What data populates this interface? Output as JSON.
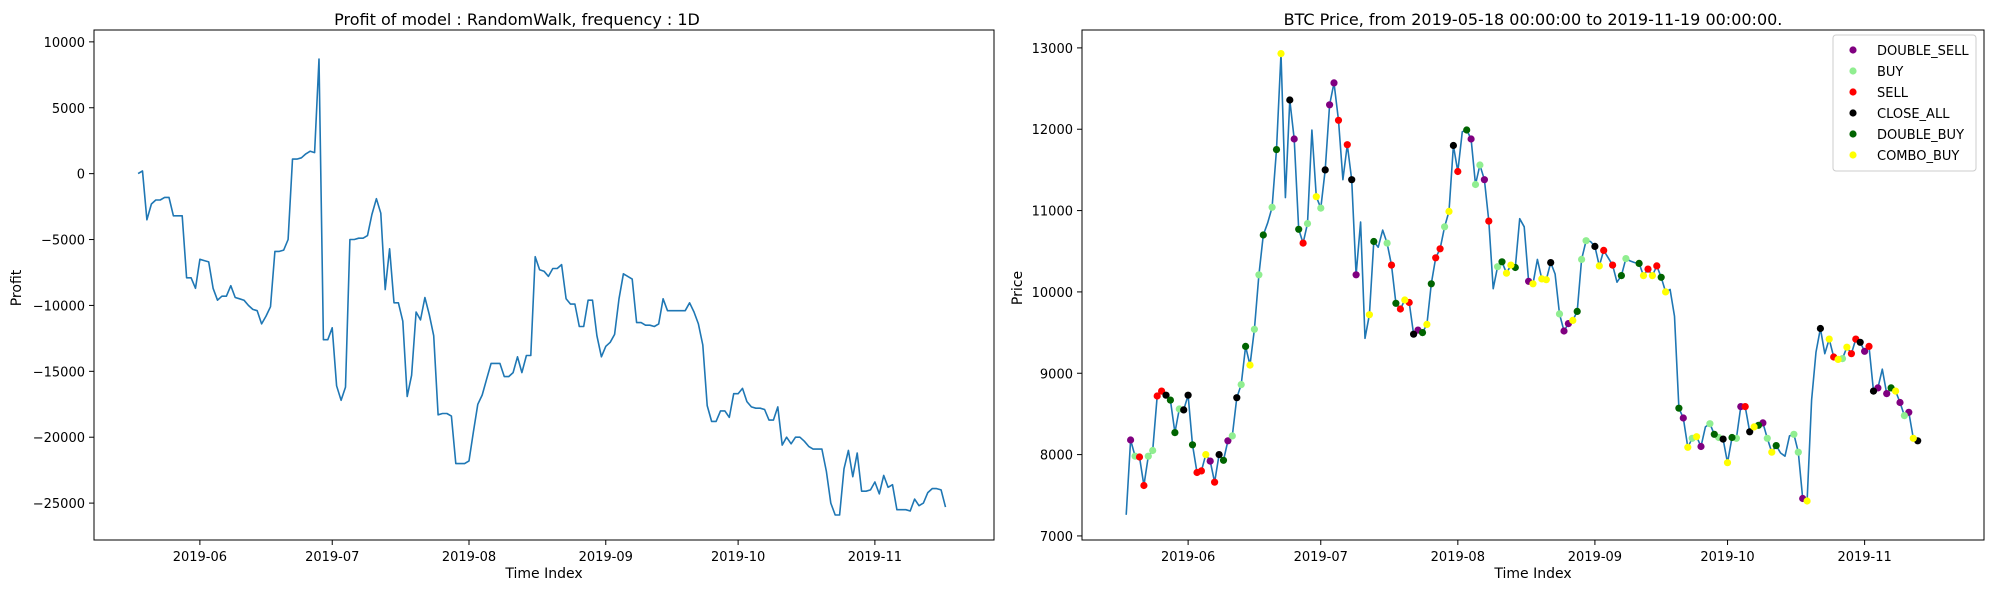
{
  "chart_data": [
    {
      "type": "line",
      "title": "Profit of model : RandomWalk, frequency : 1D",
      "xlabel": "Time Index",
      "ylabel": "Profit",
      "x_start": "2019-05-18",
      "x_ticks": [
        "2019-06",
        "2019-07",
        "2019-08",
        "2019-09",
        "2019-10",
        "2019-11"
      ],
      "x_tick_dates": [
        "2019-06-01",
        "2019-07-01",
        "2019-08-01",
        "2019-09-01",
        "2019-10-01",
        "2019-11-01"
      ],
      "xlim": [
        "2019-05-08",
        "2019-11-28"
      ],
      "y_ticks": [
        10000,
        5000,
        0,
        -5000,
        -10000,
        -15000,
        -20000,
        -25000
      ],
      "ylim": [
        -27800,
        10900
      ],
      "grid": false,
      "color": "#1f77b4",
      "series": [
        {
          "values": [
            0,
            200,
            -3500,
            -2300,
            -2000,
            -2000,
            -1800,
            -1800,
            -3200,
            -3200,
            -3200,
            -7900,
            -7900,
            -8700,
            -6500,
            -6600,
            -6700,
            -8700,
            -9600,
            -9300,
            -9300,
            -8500,
            -9400,
            -9500,
            -9600,
            -10000,
            -10300,
            -10400,
            -11400,
            -10800,
            -10100,
            -5900,
            -5900,
            -5800,
            -5000,
            1100,
            1100,
            1200,
            1500,
            1700,
            1600,
            8700,
            -12600,
            -12600,
            -11700,
            -16100,
            -17200,
            -16200,
            -5000,
            -5000,
            -4900,
            -4900,
            -4700,
            -3100,
            -1900,
            -3000,
            -8800,
            -5700,
            -9800,
            -9800,
            -11200,
            -16900,
            -15300,
            -10500,
            -11100,
            -9400,
            -10700,
            -12300,
            -18300,
            -18200,
            -18200,
            -18400,
            -22000,
            -22000,
            -22000,
            -21800,
            -19600,
            -17500,
            -16800,
            -15600,
            -14400,
            -14400,
            -14400,
            -15400,
            -15400,
            -15100,
            -13900,
            -15100,
            -13800,
            -13800,
            -6300,
            -7300,
            -7400,
            -7800,
            -7200,
            -7200,
            -6900,
            -9500,
            -9900,
            -9900,
            -11600,
            -11600,
            -9600,
            -9600,
            -12300,
            -13900,
            -13100,
            -12800,
            -12200,
            -9500,
            -7600,
            -7800,
            -8000,
            -11300,
            -11300,
            -11500,
            -11500,
            -11600,
            -11400,
            -9500,
            -10400,
            -10400,
            -10400,
            -10400,
            -10400,
            -9800,
            -10500,
            -11400,
            -13000,
            -17600,
            -18800,
            -18800,
            -18000,
            -18000,
            -18500,
            -16700,
            -16700,
            -16300,
            -17300,
            -17700,
            -17800,
            -17800,
            -17900,
            -18700,
            -18700,
            -17700,
            -20600,
            -20000,
            -20500,
            -20000,
            -20000,
            -20300,
            -20700,
            -20900,
            -20900,
            -20900,
            -22600,
            -25000,
            -25900,
            -25900,
            -22400,
            -21000,
            -23000,
            -21200,
            -24100,
            -24100,
            -24000,
            -23400,
            -24300,
            -22900,
            -23800,
            -23600,
            -25500,
            -25500,
            -25500,
            -25600,
            -24700,
            -25200,
            -25000,
            -24200,
            -23900,
            -23900,
            -24000,
            -25300
          ]
        }
      ]
    },
    {
      "type": "line",
      "title": "BTC Price, from 2019-05-18 00:00:00 to 2019-11-19 00:00:00.",
      "xlabel": "Time Index",
      "ylabel": "Price",
      "x_start": "2019-05-18",
      "x_ticks": [
        "2019-06",
        "2019-07",
        "2019-08",
        "2019-09",
        "2019-10",
        "2019-11"
      ],
      "x_tick_dates": [
        "2019-06-01",
        "2019-07-01",
        "2019-08-01",
        "2019-09-01",
        "2019-10-01",
        "2019-11-01"
      ],
      "xlim": [
        "2019-05-08",
        "2019-11-28"
      ],
      "y_ticks": [
        13000,
        12000,
        11000,
        10000,
        9000,
        8000,
        7000
      ],
      "ylim": [
        6950,
        13220
      ],
      "grid": false,
      "color": "#1f77b4",
      "legend_position": "top-right",
      "series": [
        {
          "values": [
            7260,
            8180,
            7980,
            7970,
            7620,
            7980,
            8050,
            8720,
            8780,
            8730,
            8670,
            8270,
            8560,
            8550,
            8730,
            8120,
            7780,
            7800,
            8000,
            7920,
            7660,
            8000,
            7930,
            8170,
            8230,
            8700,
            8860,
            9330,
            9100,
            9540,
            10210,
            10700,
            10850,
            11040,
            11750,
            12930,
            11160,
            12360,
            11880,
            10770,
            10600,
            10840,
            11990,
            11170,
            11030,
            11500,
            12300,
            12570,
            12110,
            11380,
            11810,
            11380,
            10210,
            10860,
            9430,
            9720,
            10620,
            10550,
            10760,
            10600,
            10330,
            9860,
            9790,
            9900,
            9870,
            9480,
            9530,
            9500,
            9600,
            10100,
            10420,
            10530,
            10800,
            10990,
            11800,
            11480,
            11970,
            11990,
            11880,
            11320,
            11560,
            11380,
            10870,
            10040,
            10310,
            10370,
            10230,
            10330,
            10300,
            10900,
            10800,
            10130,
            10100,
            10400,
            10160,
            10150,
            10360,
            10220,
            9730,
            9520,
            9610,
            9650,
            9760,
            10400,
            10630,
            10620,
            10560,
            10320,
            10510,
            10420,
            10330,
            10120,
            10200,
            10410,
            10380,
            10360,
            10350,
            10200,
            10280,
            10200,
            10320,
            10180,
            10000,
            10030,
            9700,
            8570,
            8450,
            8090,
            8200,
            8220,
            8100,
            8340,
            8380,
            8250,
            8210,
            8190,
            7900,
            8210,
            8200,
            8590,
            8590,
            8280,
            8340,
            8360,
            8390,
            8200,
            8030,
            8110,
            8020,
            7980,
            8230,
            8250,
            8030,
            7460,
            7430,
            8670,
            9260,
            9550,
            9240,
            9420,
            9200,
            9170,
            9180,
            9320,
            9240,
            9420,
            9380,
            9270,
            9330,
            8780,
            8820,
            9050,
            8750,
            8820,
            8780,
            8640,
            8480,
            8520,
            8200,
            8170
          ]
        }
      ],
      "markers": [
        {
          "name": "DOUBLE_SELL",
          "color": "#800080",
          "indices": [
            1,
            19,
            23,
            38,
            46,
            47,
            52,
            66,
            78,
            81,
            91,
            99,
            100,
            126,
            130,
            139,
            144,
            153,
            167,
            170,
            172,
            175,
            177,
            184,
            185
          ]
        },
        {
          "name": "BUY",
          "color": "#90ee90",
          "indices": [
            2,
            5,
            6,
            12,
            24,
            26,
            29,
            30,
            33,
            41,
            44,
            59,
            72,
            79,
            80,
            84,
            98,
            103,
            104,
            113,
            128,
            132,
            134,
            138,
            145,
            151,
            152,
            162,
            176,
            180,
            186
          ]
        },
        {
          "name": "SELL",
          "color": "#ff0000",
          "indices": [
            3,
            4,
            7,
            8,
            16,
            17,
            20,
            40,
            48,
            50,
            60,
            62,
            64,
            70,
            71,
            75,
            82,
            108,
            110,
            118,
            120,
            140,
            160,
            164,
            165,
            168
          ]
        },
        {
          "name": "CLOSE_ALL",
          "color": "#000000",
          "indices": [
            9,
            13,
            14,
            21,
            25,
            37,
            45,
            51,
            65,
            74,
            96,
            106,
            135,
            141,
            157,
            166,
            169,
            179
          ]
        },
        {
          "name": "DOUBLE_BUY",
          "color": "#006400",
          "indices": [
            10,
            11,
            15,
            22,
            27,
            31,
            34,
            39,
            56,
            61,
            67,
            69,
            77,
            85,
            88,
            102,
            112,
            116,
            121,
            125,
            133,
            137,
            143,
            147,
            173,
            183,
            188
          ]
        },
        {
          "name": "COMBO_BUY",
          "color": "#ffff00",
          "indices": [
            18,
            28,
            35,
            43,
            55,
            63,
            68,
            73,
            86,
            87,
            92,
            94,
            95,
            101,
            107,
            117,
            119,
            122,
            127,
            129,
            136,
            142,
            146,
            154,
            159,
            161,
            163,
            174,
            178,
            181,
            182,
            187
          ]
        }
      ]
    }
  ]
}
